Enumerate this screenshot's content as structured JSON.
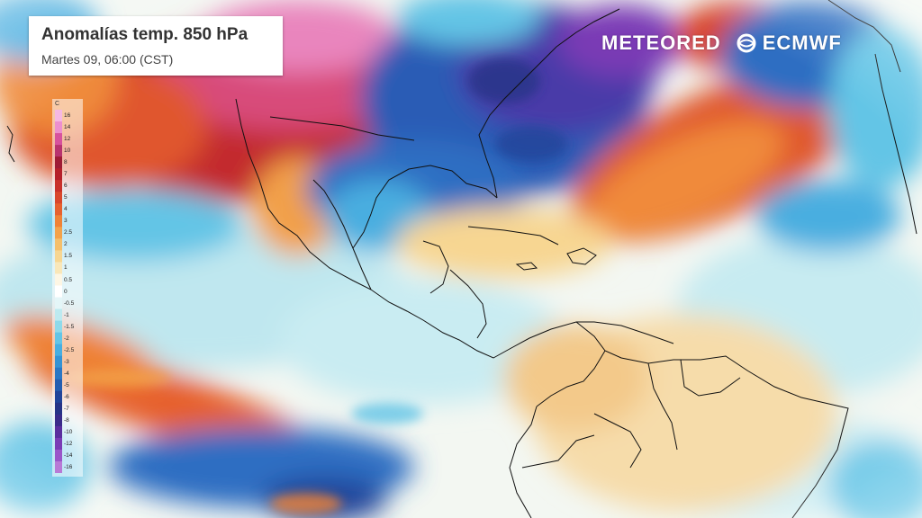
{
  "title": "Anomalías temp. 850 hPa",
  "subtitle": "Martes 09, 06:00 (CST)",
  "logos": {
    "meteored": "METEORED",
    "ecmwf": "ECMWF"
  },
  "legend": {
    "unit": "C",
    "ticks": [
      "16",
      "14",
      "12",
      "10",
      "8",
      "7",
      "6",
      "5",
      "4",
      "3",
      "2.5",
      "2",
      "1.5",
      "1",
      "0.5",
      "0",
      "-0.5",
      "-1",
      "-1.5",
      "-2",
      "-2.5",
      "-3",
      "-4",
      "-5",
      "-6",
      "-7",
      "-8",
      "-10",
      "-12",
      "-14",
      "-16"
    ],
    "colors": [
      "#f5b8e3",
      "#ec8fcf",
      "#d7529d",
      "#b8336f",
      "#9e1b35",
      "#b51f2a",
      "#c9302a",
      "#d9472c",
      "#e6612f",
      "#ef8236",
      "#f3a24a",
      "#f5bf6b",
      "#f7d692",
      "#f9e7b9",
      "#fdf6e4",
      "#ffffff",
      "#e4f6f8",
      "#bdeaf0",
      "#8fdaea",
      "#63c5e6",
      "#48aee0",
      "#3593d4",
      "#2a77c4",
      "#235db0",
      "#20449a",
      "#263487",
      "#3a2c8a",
      "#5a2e9e",
      "#7a3bb5",
      "#9a55c9",
      "#b87ad6"
    ]
  },
  "colors": {
    "ocean_neutral": "#e9f3f7",
    "warm_anomaly": "#d9472c",
    "hot_anomaly": "#b51f2a",
    "cold_anomaly": "#235db0",
    "very_cold_anomaly": "#5a2e9e",
    "coastline": "#111111"
  }
}
